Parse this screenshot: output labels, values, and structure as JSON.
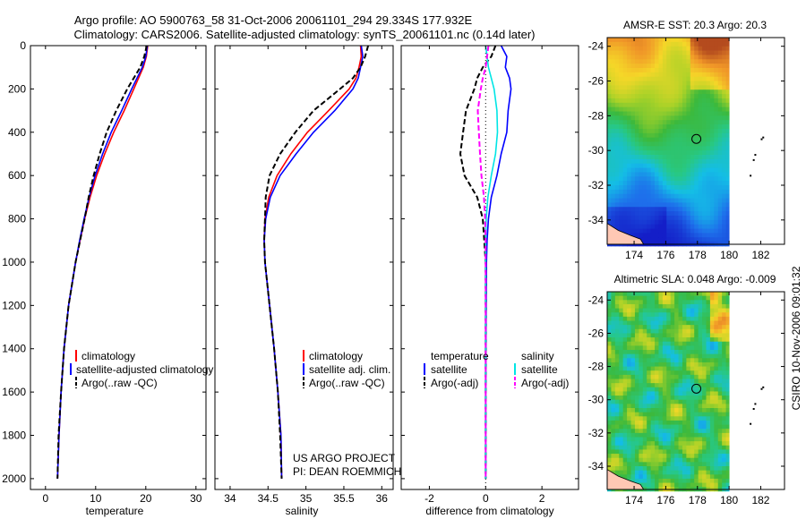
{
  "header": {
    "title_line1": "Argo profile: AO 5900763_58 31-Oct-2006 20061101_294 29.334S 177.932E",
    "title_line2": "Climatology: CARS2006. Satellite-adjusted climatology: synTS_20061101.nc (0.14d later)"
  },
  "footer": {
    "project_line1": "US ARGO PROJECT",
    "project_line2": "PI: DEAN ROEMMICH",
    "credit": "CSIRO 10-Nov-2006 09:01:32"
  },
  "colors": {
    "climatology": "#ff0000",
    "satellite": "#0000ff",
    "argo": "#000000",
    "salinity_satellite": "#00e5e5",
    "salinity_argo": "#ff00ff",
    "land": "#ffc8b4"
  },
  "chart_data": [
    {
      "id": "temperature",
      "type": "line",
      "xlabel": "temperature",
      "ylabel": "",
      "xlim": [
        -3,
        32
      ],
      "ylim": [
        2050,
        0
      ],
      "xticks": [
        0,
        10,
        20,
        30
      ],
      "yticks": [
        0,
        200,
        400,
        600,
        800,
        1000,
        1200,
        1400,
        1600,
        1800,
        2000
      ],
      "depth": [
        0,
        50,
        100,
        200,
        300,
        400,
        500,
        600,
        700,
        800,
        900,
        1000,
        1200,
        1400,
        1600,
        1800,
        2000
      ],
      "series": [
        {
          "name": "climatology",
          "color": "#ff0000",
          "dash": "",
          "values": [
            20.4,
            20.1,
            19.5,
            17.6,
            15.7,
            13.6,
            11.8,
            10.2,
            8.9,
            7.8,
            6.9,
            6.0,
            4.6,
            3.7,
            3.1,
            2.7,
            2.4
          ]
        },
        {
          "name": "satellite-adjusted climatology",
          "color": "#0000ff",
          "dash": "",
          "values": [
            20.3,
            20.0,
            19.3,
            17.2,
            15.2,
            13.1,
            11.4,
            9.9,
            8.7,
            7.7,
            6.8,
            6.0,
            4.6,
            3.7,
            3.1,
            2.7,
            2.4
          ]
        },
        {
          "name": "Argo(..raw -QC)",
          "color": "#000000",
          "dash": "6,3",
          "values": [
            20.2,
            19.7,
            18.9,
            16.3,
            14.1,
            12.2,
            10.8,
            9.6,
            8.6,
            7.8,
            6.9,
            6.0,
            4.6,
            3.7,
            3.1,
            2.6,
            2.4
          ]
        }
      ],
      "legend": [
        "climatology",
        "satellite-adjusted climatology",
        "Argo(..raw -QC)"
      ]
    },
    {
      "id": "salinity",
      "type": "line",
      "xlabel": "salinity",
      "xlim": [
        33.8,
        36.15
      ],
      "ylim": [
        2050,
        0
      ],
      "xticks": [
        34,
        34.5,
        35,
        35.5,
        36
      ],
      "depth": [
        0,
        50,
        100,
        150,
        200,
        300,
        400,
        500,
        600,
        700,
        800,
        900,
        1000,
        1200,
        1400,
        1600,
        1800,
        2000
      ],
      "series": [
        {
          "name": "climatology",
          "color": "#ff0000",
          "dash": "",
          "values": [
            35.72,
            35.73,
            35.7,
            35.66,
            35.57,
            35.3,
            35.02,
            34.8,
            34.62,
            34.51,
            34.46,
            34.45,
            34.46,
            34.52,
            34.58,
            34.63,
            34.67,
            34.68
          ]
        },
        {
          "name": "satellite adj. clim.",
          "color": "#0000ff",
          "dash": "",
          "values": [
            35.73,
            35.75,
            35.72,
            35.69,
            35.62,
            35.38,
            35.1,
            34.87,
            34.66,
            34.53,
            34.47,
            34.45,
            34.46,
            34.52,
            34.58,
            34.63,
            34.67,
            34.68
          ]
        },
        {
          "name": "Argo(..raw -QC)",
          "color": "#000000",
          "dash": "6,3",
          "values": [
            35.82,
            35.78,
            35.72,
            35.62,
            35.45,
            35.1,
            34.86,
            34.66,
            34.52,
            34.47,
            34.46,
            34.45,
            34.46,
            34.52,
            34.58,
            34.63,
            34.66,
            34.68
          ]
        }
      ],
      "legend": [
        "climatology",
        "satellite adj. clim.",
        "Argo(..raw -QC)"
      ],
      "annotations": [
        "US ARGO PROJECT",
        "PI: DEAN ROEMMICH"
      ]
    },
    {
      "id": "difference",
      "type": "line",
      "xlabel": "difference from climatology",
      "xlim": [
        -3,
        3.3
      ],
      "ylim": [
        2050,
        0
      ],
      "xticks": [
        -2,
        0,
        2
      ],
      "depth": [
        0,
        50,
        100,
        150,
        200,
        300,
        400,
        500,
        600,
        700,
        800,
        900,
        1000,
        1200,
        1400,
        1600,
        1800,
        2000
      ],
      "series": [
        {
          "name": "temperature satellite",
          "color": "#0000ff",
          "dash": "",
          "values": [
            0.55,
            0.75,
            0.7,
            0.85,
            0.9,
            0.8,
            0.75,
            0.55,
            0.4,
            0.2,
            0.1,
            0.05,
            0.03,
            0.02,
            0.01,
            0.0,
            0.0,
            0.0
          ]
        },
        {
          "name": "temperature Argo(-adj)",
          "color": "#000000",
          "dash": "6,3",
          "values": [
            0.35,
            0.2,
            -0.1,
            -0.3,
            -0.4,
            -0.7,
            -0.8,
            -0.9,
            -0.75,
            -0.3,
            -0.1,
            -0.05,
            0.0,
            0.0,
            0.0,
            0.0,
            0.0,
            0.0
          ]
        },
        {
          "name": "salinity satellite",
          "color": "#00e5e5",
          "dash": "",
          "values": [
            0.0,
            0.05,
            0.1,
            0.2,
            0.3,
            0.4,
            0.42,
            0.35,
            0.2,
            0.08,
            0.02,
            0.0,
            0.0,
            0.0,
            0.0,
            0.0,
            0.0,
            0.0
          ]
        },
        {
          "name": "salinity Argo(-adj)",
          "color": "#ff00ff",
          "dash": "6,3",
          "values": [
            0.1,
            0.05,
            0.0,
            -0.1,
            -0.17,
            -0.28,
            -0.24,
            -0.2,
            -0.15,
            -0.06,
            -0.02,
            0.0,
            0.0,
            0.0,
            0.0,
            0.0,
            0.0,
            0.0
          ]
        }
      ],
      "legend_left_title": "temperature",
      "legend_right_title": "salinity",
      "legend_left": [
        "satellite",
        "Argo(-adj)"
      ],
      "legend_right": [
        "satellite",
        "Argo(-adj)"
      ]
    },
    {
      "id": "sst_map",
      "type": "heatmap",
      "title": "AMSR-E SST: 20.3  Argo: 20.3",
      "xlim": [
        172.3,
        183.5
      ],
      "ylim": [
        -35.4,
        -23.5
      ],
      "xticks": [
        174,
        176,
        178,
        180,
        182
      ],
      "yticks": [
        -24,
        -26,
        -28,
        -30,
        -32,
        -34
      ],
      "profile_location": {
        "lon": 177.932,
        "lat": -29.334
      }
    },
    {
      "id": "sla_map",
      "type": "heatmap",
      "title": "Altimetric SLA: 0.048  Argo: -0.009",
      "xlim": [
        172.3,
        183.5
      ],
      "ylim": [
        -35.4,
        -23.5
      ],
      "xticks": [
        174,
        176,
        178,
        180,
        182
      ],
      "yticks": [
        -24,
        -26,
        -28,
        -30,
        -32,
        -34
      ],
      "profile_location": {
        "lon": 177.932,
        "lat": -29.334
      }
    }
  ]
}
